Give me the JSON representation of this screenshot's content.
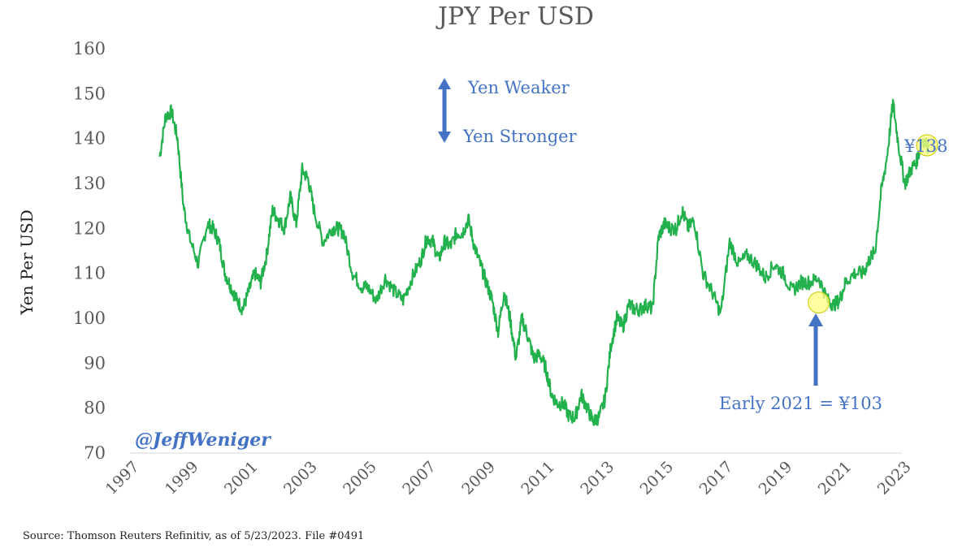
{
  "chart_data": {
    "type": "line",
    "title": "JPY Per USD",
    "ylabel": "Yen Per USD",
    "xlabel": "",
    "ylim": [
      70,
      160
    ],
    "xlim": [
      1997,
      2023
    ],
    "yticks": [
      70,
      80,
      90,
      100,
      110,
      120,
      130,
      140,
      150,
      160
    ],
    "xticks": [
      1997,
      1999,
      2001,
      2003,
      2005,
      2007,
      2009,
      2011,
      2013,
      2015,
      2017,
      2019,
      2021,
      2023
    ],
    "grid": false,
    "line_color": "#22b14c",
    "accent_color": "#4472c4",
    "highlight_color": "#ffff80",
    "series": [
      {
        "x": [
          1998.0,
          1998.2,
          1998.4,
          1998.6,
          1998.8,
          1999.0,
          1999.3,
          1999.6,
          1999.8,
          2000.0,
          2000.2,
          2000.4,
          2000.6,
          2000.8,
          2001.0,
          2001.2,
          2001.4,
          2001.6,
          2001.8,
          2002.0,
          2002.2,
          2002.4,
          2002.6,
          2002.8,
          2003.0,
          2003.2,
          2003.5,
          2003.8,
          2004.0,
          2004.2,
          2004.5,
          2004.8,
          2005.0,
          2005.3,
          2005.6,
          2005.9,
          2006.2,
          2006.5,
          2006.8,
          2007.0,
          2007.2,
          2007.4,
          2007.6,
          2007.8,
          2008.0,
          2008.2,
          2008.4,
          2008.6,
          2008.8,
          2009.0,
          2009.2,
          2009.4,
          2009.6,
          2009.8,
          2010.0,
          2010.2,
          2010.4,
          2010.6,
          2010.8,
          2011.0,
          2011.2,
          2011.4,
          2011.6,
          2011.8,
          2012.0,
          2012.2,
          2012.4,
          2012.6,
          2012.8,
          2013.0,
          2013.2,
          2013.4,
          2013.6,
          2013.8,
          2014.0,
          2014.2,
          2014.4,
          2014.6,
          2014.8,
          2015.0,
          2015.2,
          2015.4,
          2015.6,
          2015.8,
          2016.0,
          2016.3,
          2016.6,
          2016.9,
          2017.2,
          2017.5,
          2017.8,
          2018.1,
          2018.4,
          2018.7,
          2019.0,
          2019.3,
          2019.6,
          2019.9,
          2020.2,
          2020.5,
          2020.7,
          2020.9,
          2021.1,
          2021.4,
          2021.7,
          2021.9,
          2022.1,
          2022.3,
          2022.5,
          2022.7,
          2022.9,
          2023.1,
          2023.3,
          2023.5,
          2023.7,
          2023.9
        ],
        "values": [
          136,
          145,
          146,
          140,
          125,
          118,
          112,
          121,
          120,
          117,
          110,
          107,
          104,
          102,
          106,
          110,
          108,
          114,
          124,
          122,
          120,
          127,
          121,
          133,
          131,
          124,
          117,
          120,
          120,
          119,
          110,
          107,
          107,
          104,
          109,
          106,
          104,
          109,
          113,
          118,
          117,
          113,
          117,
          116,
          119,
          119,
          122,
          116,
          112,
          108,
          104,
          97,
          106,
          100,
          91,
          100,
          96,
          91,
          92,
          89,
          83,
          81,
          81,
          78,
          78,
          83,
          80,
          77,
          78,
          82,
          94,
          100,
          98,
          103,
          102,
          102,
          103,
          102,
          118,
          121,
          120,
          120,
          124,
          120,
          122,
          110,
          106,
          101,
          117,
          112,
          114,
          112,
          109,
          112,
          110,
          106,
          108,
          108,
          109,
          104,
          103,
          104,
          108,
          110,
          110,
          113,
          115,
          128,
          136,
          148,
          138,
          130,
          133,
          135,
          140,
          138
        ]
      }
    ],
    "annotations": {
      "weaker": "Yen Weaker",
      "stronger": "Yen Stronger",
      "last_label": "¥138",
      "early_2021": "Early 2021 = ¥103",
      "handle": "@JeffWeniger"
    },
    "highlights": [
      {
        "x": 2020.2,
        "y": 103.5
      },
      {
        "x": 2023.85,
        "y": 138.5
      }
    ]
  },
  "source": "Source: Thomson Reuters Refinitiv, as of 5/23/2023. File #0491"
}
